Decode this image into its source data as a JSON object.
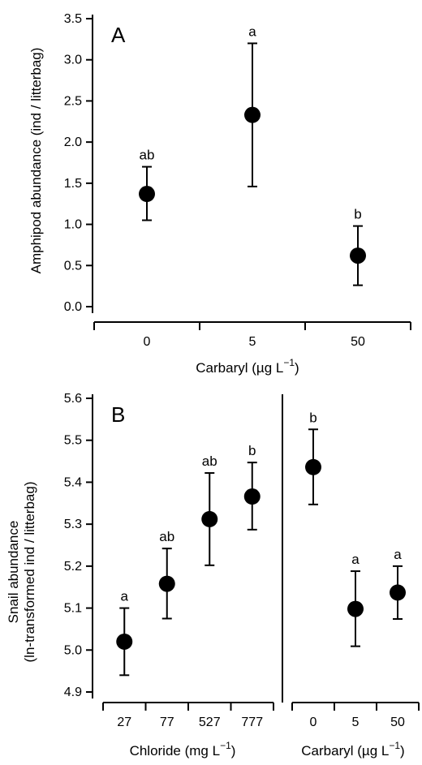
{
  "chart_data": [
    {
      "type": "scatter",
      "panel_label": "A",
      "categories": [
        "0",
        "5",
        "50"
      ],
      "values": [
        1.37,
        2.33,
        0.62
      ],
      "error_low": [
        1.05,
        1.46,
        0.26
      ],
      "error_high": [
        1.7,
        3.2,
        0.98
      ],
      "significance": [
        "ab",
        "a",
        "b"
      ],
      "xlabel": "Carbaryl (µg L",
      "xlabel_sup": "−1",
      "xlabel_close": ")",
      "ylabel": "Amphipod abundance (ind / litterbag)",
      "ylim": [
        0.0,
        3.5
      ],
      "yticks": [
        "0.0",
        "0.5",
        "1.0",
        "1.5",
        "2.0",
        "2.5",
        "3.0",
        "3.5"
      ],
      "grid": false,
      "legend": "none"
    },
    {
      "type": "scatter",
      "panel_label": "B",
      "ylabel_line1": "Snail abundance",
      "ylabel_line2": "(ln-transformed ind / litterbag)",
      "ylim": [
        4.9,
        5.6
      ],
      "yticks": [
        "4.9",
        "5.0",
        "5.1",
        "5.2",
        "5.3",
        "5.4",
        "5.5",
        "5.6"
      ],
      "grid": false,
      "legend": "none",
      "subpanels": [
        {
          "categories": [
            "27",
            "77",
            "527",
            "777"
          ],
          "values": [
            5.02,
            5.158,
            5.312,
            5.366
          ],
          "error_low": [
            4.94,
            5.075,
            5.202,
            5.287
          ],
          "error_high": [
            5.1,
            5.242,
            5.422,
            5.447
          ],
          "significance": [
            "a",
            "ab",
            "ab",
            "b"
          ],
          "xlabel": "Chloride (mg L",
          "xlabel_sup": "−1",
          "xlabel_close": ")"
        },
        {
          "categories": [
            "0",
            "5",
            "50"
          ],
          "values": [
            5.436,
            5.098,
            5.137
          ],
          "error_low": [
            5.347,
            5.009,
            5.074
          ],
          "error_high": [
            5.526,
            5.188,
            5.2
          ],
          "significance": [
            "b",
            "a",
            "a"
          ],
          "xlabel": "Carbaryl (µg L",
          "xlabel_sup": "−1",
          "xlabel_close": ")"
        }
      ]
    }
  ]
}
